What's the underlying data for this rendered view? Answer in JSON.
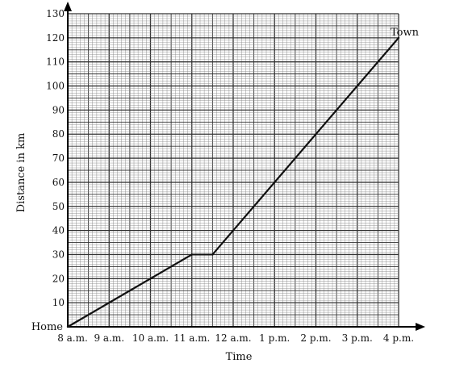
{
  "chart_data": {
    "type": "line",
    "xlabel": "Time",
    "ylabel": "Distance in km",
    "x_tick_labels": [
      "8 a.m.",
      "9 a.m.",
      "10 a.m.",
      "11 a.m.",
      "12 a.m.",
      "1 p.m.",
      "2 p.m.",
      "3 p.m.",
      "4 p.m."
    ],
    "x_tick_values": [
      8,
      9,
      10,
      11,
      12,
      13,
      14,
      15,
      16
    ],
    "y_tick_labels": [
      "10",
      "20",
      "30",
      "40",
      "50",
      "60",
      "70",
      "80",
      "90",
      "100",
      "110",
      "120",
      "130"
    ],
    "y_tick_values": [
      10,
      20,
      30,
      40,
      50,
      60,
      70,
      80,
      90,
      100,
      110,
      120,
      130
    ],
    "xlim": [
      8,
      16
    ],
    "ylim": [
      0,
      130
    ],
    "grid": true,
    "series": [
      {
        "x": [
          8,
          11,
          11.5,
          16
        ],
        "y": [
          0,
          30,
          30,
          120
        ]
      }
    ],
    "annotations": {
      "start_label": "Home",
      "end_label": "Town"
    },
    "colors": {
      "line": "#111111",
      "major_grid": "#333333",
      "minor_grid": "#8a8a8a",
      "axis": "#000000"
    }
  }
}
